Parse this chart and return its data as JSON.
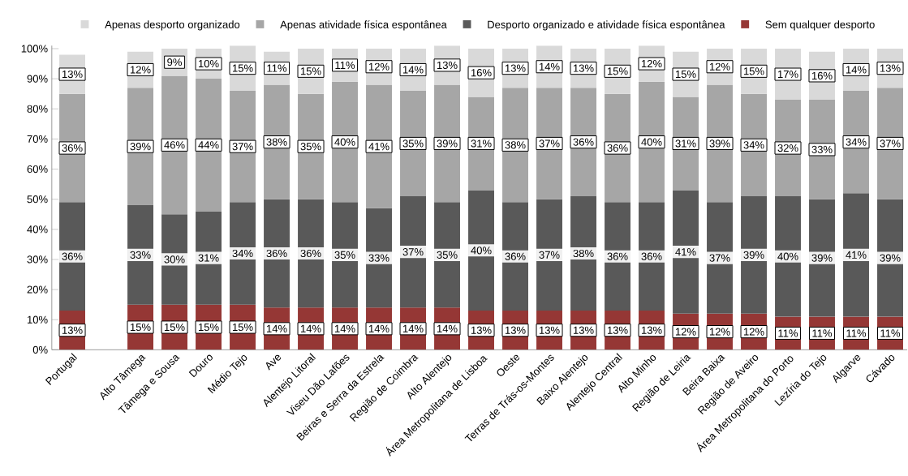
{
  "chart_data": {
    "type": "bar",
    "stacked": true,
    "legend": "top",
    "categories": [
      "Portugal",
      null,
      "Alto Tâmega",
      "Tâmega e Sousa",
      "Douro",
      "Médio Tejo",
      "Ave",
      "Alentejo Litoral",
      "Viseu Dão Lafões",
      "Beiras e Serra da Estrela",
      "Região de Coimbra",
      "Alto Alentejo",
      "Área Metropolitana de Lisboa",
      "Oeste",
      "Terras de Trás-os-Montes",
      "Baixo Alentejo",
      "Alentejo Central",
      "Alto Minho",
      "Região de Leiria",
      "Beira Baixa",
      "Região de Aveiro",
      "Área Metropolitana do Porto",
      "Lezíria do Tejo",
      "Algarve",
      "Cávado"
    ],
    "ylim": [
      0,
      101
    ],
    "yticks": [
      {
        "value": 0,
        "label": "0%"
      },
      {
        "value": 10,
        "label": "10%"
      },
      {
        "value": 20,
        "label": "20%"
      },
      {
        "value": 30,
        "label": "30%"
      },
      {
        "value": 40,
        "label": "40%"
      },
      {
        "value": 50,
        "label": "50%"
      },
      {
        "value": 60,
        "label": "60%"
      },
      {
        "value": 70,
        "label": "70%"
      },
      {
        "value": 80,
        "label": "80%"
      },
      {
        "value": 90,
        "label": "90%"
      },
      {
        "value": 100,
        "label": "100%"
      }
    ],
    "series": [
      {
        "name": "Sem qualquer desporto",
        "color": "#953735",
        "values": [
          13,
          null,
          15,
          15,
          15,
          15,
          14,
          14,
          14,
          14,
          14,
          14,
          13,
          13,
          13,
          13,
          13,
          13,
          12,
          12,
          12,
          11,
          11,
          11,
          11
        ],
        "value_labels": [
          "13%",
          null,
          "15%",
          "15%",
          "15%",
          "15%",
          "14%",
          "14%",
          "14%",
          "14%",
          "14%",
          "14%",
          "13%",
          "13%",
          "13%",
          "13%",
          "13%",
          "13%",
          "12%",
          "12%",
          "12%",
          "11%",
          "11%",
          "11%",
          "11%"
        ]
      },
      {
        "name": "Desporto organizado e atividade física espontânea",
        "color": "#595959",
        "values": [
          36,
          null,
          33,
          30,
          31,
          34,
          36,
          36,
          35,
          33,
          37,
          35,
          40,
          36,
          37,
          38,
          36,
          36,
          41,
          37,
          39,
          40,
          39,
          41,
          39
        ],
        "value_labels": [
          "36%",
          null,
          "33%",
          "30%",
          "31%",
          "34%",
          "36%",
          "36%",
          "35%",
          "33%",
          "37%",
          "35%",
          "40%",
          "36%",
          "37%",
          "38%",
          "36%",
          "36%",
          "41%",
          "37%",
          "39%",
          "40%",
          "39%",
          "41%",
          "39%"
        ]
      },
      {
        "name": "Apenas atividade física espontânea",
        "color": "#a6a6a6",
        "values": [
          36,
          null,
          39,
          46,
          44,
          37,
          38,
          35,
          40,
          41,
          35,
          39,
          31,
          38,
          37,
          36,
          36,
          40,
          31,
          39,
          34,
          32,
          33,
          34,
          37
        ],
        "value_labels": [
          "36%",
          null,
          "39%",
          "46%",
          "44%",
          "37%",
          "38%",
          "35%",
          "40%",
          "41%",
          "35%",
          "39%",
          "31%",
          "38%",
          "37%",
          "36%",
          "36%",
          "40%",
          "31%",
          "39%",
          "34%",
          "32%",
          "33%",
          "34%",
          "37%"
        ]
      },
      {
        "name": "Apenas desporto organizado",
        "color": "#d9d9d9",
        "values": [
          13,
          null,
          12,
          9,
          10,
          15,
          11,
          15,
          11,
          12,
          14,
          13,
          16,
          13,
          14,
          13,
          15,
          12,
          15,
          12,
          15,
          17,
          16,
          14,
          13
        ],
        "value_labels": [
          "13%",
          null,
          "12%",
          "9%",
          "10%",
          "15%",
          "11%",
          "15%",
          "11%",
          "12%",
          "14%",
          "13%",
          "16%",
          "13%",
          "14%",
          "13%",
          "15%",
          "12%",
          "15%",
          "12%",
          "15%",
          "17%",
          "16%",
          "14%",
          "13%"
        ]
      }
    ]
  }
}
